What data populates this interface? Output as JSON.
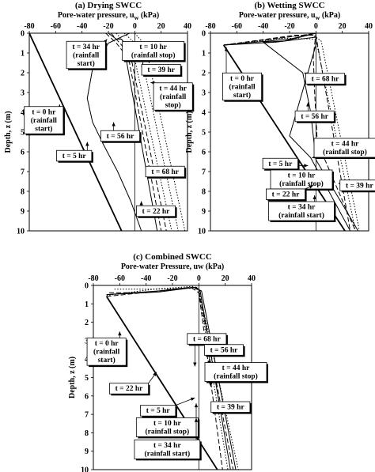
{
  "chart_data": [
    {
      "panel": "a",
      "type": "line",
      "title": "(a) Drying SWCC",
      "xlabel": "Pore-water pressure, u",
      "xlabel_sub": "w",
      "xlabel_unit": " (kPa)",
      "ylabel": "Depth, z (m)",
      "xlim": [
        -80,
        40
      ],
      "ylim": [
        0,
        10
      ],
      "xticks": [
        -80,
        -60,
        -40,
        -20,
        0,
        20,
        40
      ],
      "yticks": [
        0,
        1,
        2,
        3,
        4,
        5,
        6,
        7,
        8,
        9,
        10
      ],
      "series": [
        {
          "dash": "",
          "width": 1.8,
          "points": [
            [
              -80,
              0
            ],
            [
              -10,
              10
            ]
          ]
        },
        {
          "dash": "",
          "width": 1.0,
          "points": [
            [
              -4,
              0
            ],
            [
              -20,
              0.5
            ],
            [
              -32,
              1.8
            ],
            [
              -36,
              3.3
            ],
            [
              -32,
              4.5
            ],
            [
              -24,
              5.6
            ],
            [
              -13,
              7
            ],
            [
              -3,
              8.5
            ],
            [
              5,
              10
            ]
          ]
        },
        {
          "dash": "",
          "width": 1.0,
          "points": [
            [
              -20,
              0
            ],
            [
              -14,
              0.3
            ],
            [
              -10,
              0.3
            ],
            [
              -8,
              0.5
            ],
            [
              -6.5,
              1.0
            ],
            [
              -6,
              1.5
            ],
            [
              17,
              10
            ]
          ]
        },
        {
          "dash": "6 3",
          "width": 1.0,
          "points": [
            [
              -22,
              0
            ],
            [
              -14,
              0.5
            ],
            [
              -8,
              1.0
            ],
            [
              -4,
              1.5
            ],
            [
              20,
              10
            ]
          ]
        },
        {
          "dash": "6 3",
          "width": 1.0,
          "points": [
            [
              -18,
              0
            ],
            [
              -10,
              0.6
            ],
            [
              -2,
              1.5
            ],
            [
              24,
              10
            ]
          ]
        },
        {
          "dash": "1.5 2",
          "width": 1.0,
          "points": [
            [
              -14,
              0
            ],
            [
              -4,
              0.8
            ],
            [
              0,
              1.3
            ],
            [
              28,
              10
            ]
          ]
        },
        {
          "dash": "1.5 2",
          "width": 1.0,
          "points": [
            [
              -8,
              0
            ],
            [
              0,
              0.5
            ],
            [
              4,
              0.8
            ],
            [
              33,
              10
            ]
          ]
        },
        {
          "dash": "1.5 2",
          "width": 1.0,
          "points": [
            [
              0,
              0
            ],
            [
              8,
              0.6
            ],
            [
              38,
              10
            ]
          ]
        }
      ],
      "labels": [
        {
          "text": [
            "t = 34 hr",
            "(rainfall",
            "start)"
          ],
          "at": [
            -37,
            1.1
          ],
          "arrow_to": [
            -21,
            0.3
          ]
        },
        {
          "text": [
            "t = 10 hr",
            "(rainfall stop)"
          ],
          "at": [
            14,
            0.9
          ],
          "arrow_to": [
            3,
            0.6
          ]
        },
        {
          "text": [
            "t = 39 hr"
          ],
          "at": [
            20,
            1.85
          ],
          "arrow_to": [
            6,
            1.5
          ]
        },
        {
          "text": [
            "t = 44 hr",
            "(rainfall",
            "stop)"
          ],
          "at": [
            29,
            3.2
          ],
          "arrow_to": [
            12,
            2.5
          ]
        },
        {
          "text": [
            "t = 0 hr",
            "(rainfall",
            "start)"
          ],
          "at": [
            -69,
            4.4
          ],
          "arrow_to": [
            -57,
            3.6
          ]
        },
        {
          "text": [
            "t = 56 hr"
          ],
          "at": [
            -11,
            5.2
          ],
          "arrow_to": [
            -16,
            4.5
          ]
        },
        {
          "text": [
            "t = 5 hr"
          ],
          "at": [
            -46,
            6.2
          ],
          "arrow_to": [
            -36,
            5.5
          ]
        },
        {
          "text": [
            "t = 68 hr"
          ],
          "at": [
            23,
            7.0
          ],
          "arrow_to": [
            11,
            6.7
          ]
        },
        {
          "text": [
            "t = 22 hr"
          ],
          "at": [
            16,
            9.0
          ],
          "arrow_to": [
            5,
            8.5
          ]
        }
      ]
    },
    {
      "panel": "b",
      "type": "line",
      "title": "(b) Wetting SWCC",
      "xlabel": "Pore-water pressure, u",
      "xlabel_sub": "w",
      "xlabel_unit": " (kPa)",
      "ylabel": "Depth, z (m)",
      "xlim": [
        -80,
        40
      ],
      "ylim": [
        0,
        10
      ],
      "xticks": [
        -80,
        -60,
        -40,
        -20,
        0,
        20,
        40
      ],
      "yticks": [
        0,
        1,
        2,
        3,
        4,
        5,
        6,
        7,
        8,
        9,
        10
      ],
      "series": [
        {
          "dash": "",
          "width": 1.8,
          "points": [
            [
              -70,
              0.6
            ],
            [
              22,
              10
            ]
          ]
        },
        {
          "dash": "",
          "width": 1.0,
          "points": [
            [
              -70,
              0.6
            ],
            [
              -30,
              0.45
            ],
            [
              0,
              0.2
            ],
            [
              0,
              0.6
            ],
            [
              -20,
              5.2
            ],
            [
              -4,
              6.3
            ],
            [
              26,
              10
            ]
          ]
        },
        {
          "dash": "",
          "width": 1.0,
          "points": [
            [
              -70,
              0.6
            ],
            [
              -20,
              0.3
            ],
            [
              0,
              0
            ],
            [
              -24,
              0.4
            ],
            [
              -40,
              0.45
            ],
            [
              -10,
              2.0
            ],
            [
              -4,
              4.0
            ],
            [
              0,
              6.4
            ],
            [
              32,
              10
            ]
          ]
        },
        {
          "dash": "6 3",
          "width": 1.0,
          "points": [
            [
              -70,
              0.6
            ],
            [
              -10,
              0.1
            ],
            [
              0,
              0
            ],
            [
              -2,
              1.2
            ],
            [
              -1,
              3.0
            ],
            [
              1,
              5.5
            ],
            [
              30,
              10
            ]
          ]
        },
        {
          "dash": "6 3",
          "width": 1.0,
          "points": [
            [
              -70,
              0.6
            ],
            [
              -16,
              0.1
            ],
            [
              0,
              0.1
            ],
            [
              26,
              10
            ]
          ]
        },
        {
          "dash": "1.5 2",
          "width": 1.0,
          "points": [
            [
              -70,
              0.6
            ],
            [
              -4,
              0.05
            ],
            [
              0,
              0.2
            ],
            [
              4,
              0.4
            ],
            [
              33,
              10
            ]
          ]
        },
        {
          "dash": "1.5 2",
          "width": 1.0,
          "points": [
            [
              -70,
              0.6
            ],
            [
              -24,
              0.25
            ],
            [
              0,
              0.3
            ],
            [
              30,
              10
            ]
          ]
        }
      ],
      "labels": [
        {
          "text": [
            "t = 0 hr",
            "(rainfall",
            "start)"
          ],
          "at": [
            -56,
            2.7
          ],
          "arrow_to": [
            -68,
            0.7
          ]
        },
        {
          "text": [
            "t = 68 hr"
          ],
          "at": [
            7,
            2.3
          ],
          "arrow_to": [
            -9,
            2.0
          ]
        },
        {
          "text": [
            "t = 56 hr"
          ],
          "at": [
            -1,
            4.2
          ],
          "arrow_to": [
            -6,
            3.5
          ]
        },
        {
          "text": [
            "t = 44 hr",
            "(rainfall stop)"
          ],
          "at": [
            22,
            5.8
          ],
          "arrow_to": [
            -3,
            6.3
          ]
        },
        {
          "text": [
            "t = 5 hr"
          ],
          "at": [
            -27,
            6.6
          ],
          "arrow_to": [
            -6,
            6.7
          ]
        },
        {
          "text": [
            "t = 10 hr",
            "(rainfall stop)"
          ],
          "at": [
            -11,
            7.4
          ],
          "arrow_to": [
            -3,
            6.9
          ]
        },
        {
          "text": [
            "t = 22 hr"
          ],
          "at": [
            -23,
            8.15
          ],
          "arrow_to": [
            -2,
            7.7
          ]
        },
        {
          "text": [
            "t = 39 hr"
          ],
          "at": [
            33,
            7.7
          ],
          "arrow_to": [
            17,
            7.6
          ]
        },
        {
          "text": [
            "t = 34 hr",
            "(rainfall start)"
          ],
          "at": [
            -11,
            9.0
          ],
          "arrow_to": [
            -1,
            8.2
          ]
        }
      ]
    },
    {
      "panel": "c",
      "type": "line",
      "title": "(c) Combined SWCC",
      "xlabel": "Pore-water Pressure, uw (kPa)",
      "xlabel_sub": "",
      "xlabel_unit": "",
      "ylabel": "Depth, z (m)",
      "xlim": [
        -80,
        40
      ],
      "ylim": [
        0,
        10
      ],
      "xticks": [
        -80,
        -60,
        -40,
        -20,
        0,
        20,
        40
      ],
      "yticks": [
        0,
        1,
        2,
        3,
        4,
        5,
        6,
        7,
        8,
        9,
        10
      ],
      "series": [
        {
          "dash": "",
          "width": 1.8,
          "points": [
            [
              -70,
              0.6
            ],
            [
              14,
              10
            ]
          ]
        },
        {
          "dash": "",
          "width": 1.0,
          "points": [
            [
              -70,
              0.5
            ],
            [
              -20,
              0.25
            ],
            [
              -4,
              0.1
            ],
            [
              2,
              0.3
            ],
            [
              28,
              10
            ]
          ]
        },
        {
          "dash": "",
          "width": 1.0,
          "points": [
            [
              -70,
              0.5
            ],
            [
              -30,
              0.35
            ],
            [
              -2,
              0.1
            ],
            [
              1,
              0.3
            ],
            [
              24,
              10
            ]
          ]
        },
        {
          "dash": "6 3",
          "width": 1.0,
          "points": [
            [
              -68,
              0.4
            ],
            [
              -40,
              0.4
            ],
            [
              -20,
              0.2
            ],
            [
              -2,
              0.1
            ],
            [
              0,
              0.3
            ],
            [
              26,
              10
            ]
          ]
        },
        {
          "dash": "6 3",
          "width": 1.0,
          "points": [
            [
              -70,
              0.6
            ],
            [
              -30,
              0.3
            ],
            [
              -6,
              0.1
            ],
            [
              0,
              0.4
            ],
            [
              18,
              10
            ]
          ]
        },
        {
          "dash": "1.5 2",
          "width": 1.0,
          "points": [
            [
              -64,
              0.2
            ],
            [
              -50,
              0.2
            ],
            [
              -30,
              0.2
            ],
            [
              -10,
              0.15
            ],
            [
              0,
              0.2
            ],
            [
              30,
              10
            ]
          ]
        },
        {
          "dash": "1.5 2",
          "width": 1.0,
          "points": [
            [
              -70,
              0.55
            ],
            [
              -34,
              0.2
            ],
            [
              -4,
              0.05
            ],
            [
              0,
              0.3
            ],
            [
              22,
              10
            ]
          ]
        }
      ],
      "labels": [
        {
          "text": [
            "t = 0 hr",
            "(rainfall",
            "start)"
          ],
          "at": [
            -70,
            3.6
          ],
          "arrow_to": [
            -60,
            2.5
          ]
        },
        {
          "text": [
            "t = 68 hr"
          ],
          "at": [
            6,
            2.9
          ],
          "arrow_to": [
            -3,
            4.4
          ]
        },
        {
          "text": [
            "t = 56 hr"
          ],
          "at": [
            19,
            3.5
          ],
          "arrow_to": [
            8,
            4.3
          ]
        },
        {
          "text": [
            "t = 44 hr",
            "(rainfall stop)"
          ],
          "at": [
            28,
            4.7
          ],
          "arrow_to": [
            9,
            5.5
          ]
        },
        {
          "text": [
            "t = 22 hr"
          ],
          "at": [
            -53,
            5.6
          ],
          "arrow_to": [
            -32,
            4.7
          ]
        },
        {
          "text": [
            "t = 39 hr"
          ],
          "at": [
            24,
            6.6
          ],
          "arrow_to": [
            12,
            6.3
          ]
        },
        {
          "text": [
            "t = 5 hr"
          ],
          "at": [
            -31,
            6.8
          ],
          "arrow_to": [
            -3,
            6.1
          ]
        },
        {
          "text": [
            "t = 10 hr",
            "(rainfall stop)"
          ],
          "at": [
            -24,
            7.7
          ],
          "arrow_to": [
            -2,
            6.4
          ]
        },
        {
          "text": [
            "t = 34 hr",
            "(rainfall start)"
          ],
          "at": [
            -24,
            8.9
          ],
          "arrow_to": [
            -2,
            7.2
          ]
        }
      ]
    }
  ]
}
